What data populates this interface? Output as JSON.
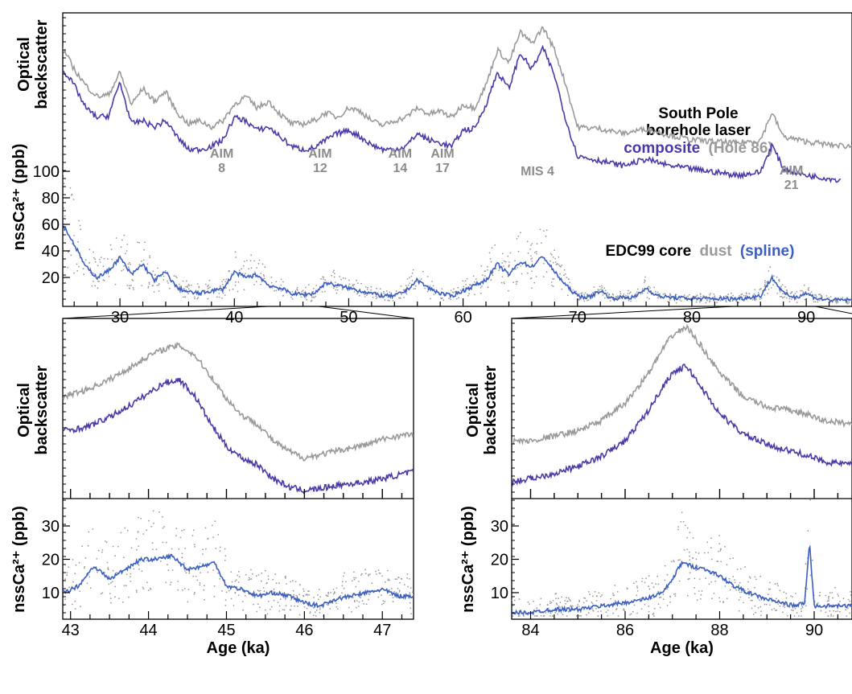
{
  "colors": {
    "laser_composite": "#4a3aa8",
    "laser_hole86": "#9a9a9a",
    "dust": "#9a9a9a",
    "spline": "#3b5fc0",
    "annotation": "#8c8c8c"
  },
  "legend": {
    "line1": "South Pole",
    "line2": "borehole laser",
    "composite": "composite",
    "hole": "(Hole 86)",
    "edc_core": "EDC99 core",
    "dust": "dust",
    "spline": "(spline)"
  },
  "annotations": [
    {
      "label": "AIM",
      "sub": "8",
      "age": 38.9
    },
    {
      "label": "AIM",
      "sub": "12",
      "age": 47.5
    },
    {
      "label": "AIM",
      "sub": "14",
      "age": 54.5
    },
    {
      "label": "AIM",
      "sub": "17",
      "age": 58.2
    },
    {
      "label": "MIS 4",
      "sub": "",
      "age": 66.5
    },
    {
      "label": "AIM",
      "sub": "21",
      "age": 88.7
    }
  ],
  "chart_data": [
    {
      "id": "top",
      "type": "line",
      "xlim": [
        25,
        94
      ],
      "x_ticks": [
        30,
        40,
        50,
        60,
        70,
        80,
        90
      ],
      "x_tick_labels": [
        "30",
        "40",
        "50",
        "60",
        "70",
        "80",
        "90"
      ],
      "ylabel_upper": "Optical backscatter",
      "ylabel_lower": "nssCa²⁺ (ppb)",
      "ylim_dust": [
        0,
        120
      ],
      "y_ticks_dust": [
        20,
        40,
        60,
        80,
        100
      ],
      "series": [
        {
          "key": "hole86",
          "x": [
            25,
            26,
            27,
            28,
            29,
            30,
            31,
            32,
            33,
            34,
            35,
            36,
            37,
            38,
            39,
            40,
            41,
            42,
            43,
            44,
            45,
            46,
            47,
            48,
            49,
            50,
            51,
            52,
            53,
            54,
            55,
            56,
            57,
            58,
            59,
            60,
            61,
            62,
            63,
            64,
            65,
            66,
            67,
            68,
            69,
            70,
            72,
            74,
            76,
            78,
            80,
            82,
            84,
            86,
            87,
            88,
            90,
            92,
            94
          ],
          "y": [
            0.85,
            0.72,
            0.62,
            0.55,
            0.56,
            0.7,
            0.5,
            0.6,
            0.52,
            0.58,
            0.45,
            0.38,
            0.4,
            0.36,
            0.4,
            0.5,
            0.55,
            0.48,
            0.52,
            0.44,
            0.38,
            0.38,
            0.4,
            0.45,
            0.42,
            0.48,
            0.46,
            0.4,
            0.37,
            0.4,
            0.42,
            0.48,
            0.44,
            0.46,
            0.42,
            0.5,
            0.48,
            0.62,
            0.84,
            0.76,
            0.95,
            0.88,
            0.98,
            0.84,
            0.62,
            0.36,
            0.35,
            0.32,
            0.35,
            0.31,
            0.28,
            0.27,
            0.26,
            0.28,
            0.45,
            0.3,
            0.27,
            0.25,
            0.24
          ]
        },
        {
          "key": "composite",
          "x": [
            25,
            26,
            27,
            28,
            29,
            30,
            31,
            32,
            33,
            34,
            35,
            36,
            37,
            38,
            39,
            40,
            41,
            42,
            43,
            44,
            45,
            46,
            47,
            48,
            49,
            50,
            51,
            52,
            53,
            54,
            55,
            56,
            57,
            58,
            59,
            60,
            61,
            62,
            63,
            64,
            65,
            66,
            67,
            68,
            69,
            70,
            72,
            74,
            76,
            78,
            80,
            82,
            84,
            86,
            87,
            88,
            90,
            92,
            93
          ],
          "y": [
            0.72,
            0.62,
            0.48,
            0.42,
            0.43,
            0.64,
            0.38,
            0.4,
            0.36,
            0.4,
            0.3,
            0.22,
            0.22,
            0.24,
            0.28,
            0.42,
            0.4,
            0.34,
            0.36,
            0.3,
            0.24,
            0.22,
            0.23,
            0.28,
            0.32,
            0.34,
            0.3,
            0.25,
            0.22,
            0.22,
            0.24,
            0.32,
            0.28,
            0.26,
            0.24,
            0.34,
            0.35,
            0.5,
            0.7,
            0.6,
            0.82,
            0.72,
            0.85,
            0.68,
            0.4,
            0.18,
            0.15,
            0.12,
            0.16,
            0.12,
            0.1,
            0.08,
            0.06,
            0.08,
            0.25,
            0.1,
            0.06,
            0.04,
            0.03
          ]
        },
        {
          "key": "spline",
          "x": [
            25,
            26,
            27,
            28,
            29,
            30,
            31,
            32,
            33,
            34,
            35,
            36,
            37,
            38,
            39,
            40,
            41,
            42,
            43,
            44,
            45,
            46,
            47,
            48,
            49,
            50,
            51,
            52,
            53,
            54,
            55,
            56,
            57,
            58,
            59,
            60,
            61,
            62,
            63,
            64,
            65,
            66,
            67,
            68,
            69,
            70,
            71,
            72,
            73,
            74,
            75,
            76,
            77,
            78,
            80,
            82,
            84,
            86,
            87,
            88,
            89,
            90,
            91,
            92,
            94
          ],
          "y": [
            60,
            45,
            28,
            20,
            25,
            35,
            22,
            30,
            18,
            24,
            12,
            9,
            8,
            10,
            11,
            24,
            20,
            22,
            14,
            12,
            8,
            7,
            8,
            16,
            14,
            12,
            10,
            8,
            6,
            6,
            10,
            18,
            12,
            8,
            6,
            10,
            14,
            18,
            30,
            22,
            32,
            28,
            36,
            24,
            14,
            6,
            5,
            10,
            4,
            5,
            5,
            12,
            6,
            5,
            4,
            4,
            4,
            6,
            20,
            8,
            5,
            8,
            4,
            3,
            3
          ]
        }
      ]
    },
    {
      "id": "zoom-left",
      "type": "line",
      "xlim": [
        42.9,
        47.4
      ],
      "x_ticks": [
        43,
        44,
        45,
        46,
        47
      ],
      "x_tick_labels": [
        "43",
        "44",
        "45",
        "46",
        "47"
      ],
      "xlabel": "Age (ka)",
      "ylabel_upper": "Optical backscatter",
      "ylabel_lower": "nssCa²⁺ (ppb)",
      "ylim_dust": [
        3,
        37
      ],
      "y_ticks_dust": [
        10,
        20,
        30
      ],
      "series": [
        {
          "key": "hole86",
          "x": [
            42.9,
            43.2,
            43.5,
            43.8,
            44.0,
            44.2,
            44.4,
            44.6,
            44.8,
            45.0,
            45.2,
            45.4,
            45.6,
            45.8,
            46.0,
            46.2,
            46.4,
            46.6,
            46.8,
            47.0,
            47.2,
            47.4
          ],
          "y": [
            0.56,
            0.6,
            0.66,
            0.74,
            0.8,
            0.84,
            0.86,
            0.8,
            0.68,
            0.55,
            0.45,
            0.4,
            0.3,
            0.24,
            0.2,
            0.22,
            0.24,
            0.26,
            0.28,
            0.31,
            0.33,
            0.34
          ]
        },
        {
          "key": "composite",
          "x": [
            42.9,
            43.2,
            43.5,
            43.8,
            44.0,
            44.2,
            44.4,
            44.6,
            44.8,
            45.0,
            45.2,
            45.4,
            45.6,
            45.8,
            46.0,
            46.2,
            46.4,
            46.6,
            46.8,
            47.0,
            47.2,
            47.4
          ],
          "y": [
            0.36,
            0.38,
            0.44,
            0.52,
            0.58,
            0.64,
            0.66,
            0.56,
            0.4,
            0.27,
            0.2,
            0.16,
            0.08,
            0.03,
            0.01,
            0.02,
            0.04,
            0.05,
            0.06,
            0.08,
            0.1,
            0.12
          ]
        },
        {
          "key": "spline",
          "x": [
            42.9,
            43.1,
            43.3,
            43.5,
            43.7,
            43.9,
            44.1,
            44.3,
            44.5,
            44.7,
            44.85,
            45.0,
            45.2,
            45.4,
            45.6,
            45.8,
            46.0,
            46.2,
            46.4,
            46.6,
            46.8,
            47.0,
            47.2,
            47.4
          ],
          "y": [
            10,
            12,
            18,
            14,
            17,
            20,
            20,
            21,
            17,
            18,
            19,
            12,
            11,
            9,
            10,
            9,
            7,
            6,
            8,
            9,
            10,
            11,
            9,
            9
          ]
        }
      ]
    },
    {
      "id": "zoom-right",
      "type": "line",
      "xlim": [
        83.6,
        90.8
      ],
      "x_ticks": [
        84,
        86,
        88,
        90
      ],
      "x_tick_labels": [
        "84",
        "86",
        "88",
        "90"
      ],
      "xlabel": "Age (ka)",
      "ylabel_upper": "Optical backscatter",
      "ylabel_lower": "nssCa²⁺ (ppb)",
      "ylim_dust": [
        3,
        37
      ],
      "y_ticks_dust": [
        10,
        20,
        30
      ],
      "series": [
        {
          "key": "hole86",
          "x": [
            83.6,
            84.0,
            84.5,
            85.0,
            85.5,
            86.0,
            86.5,
            86.8,
            87.0,
            87.3,
            87.6,
            88.0,
            88.5,
            89.0,
            89.5,
            89.8,
            90.2,
            90.8
          ],
          "y": [
            0.3,
            0.3,
            0.33,
            0.36,
            0.42,
            0.52,
            0.7,
            0.84,
            0.92,
            0.97,
            0.86,
            0.7,
            0.56,
            0.5,
            0.48,
            0.46,
            0.42,
            0.4
          ]
        },
        {
          "key": "composite",
          "x": [
            83.6,
            84.0,
            84.5,
            85.0,
            85.5,
            86.0,
            86.5,
            86.8,
            87.0,
            87.3,
            87.6,
            88.0,
            88.5,
            89.0,
            89.5,
            89.8,
            90.2,
            90.8
          ],
          "y": [
            0.06,
            0.08,
            0.11,
            0.15,
            0.21,
            0.3,
            0.48,
            0.62,
            0.7,
            0.74,
            0.62,
            0.46,
            0.34,
            0.28,
            0.24,
            0.22,
            0.18,
            0.16
          ]
        },
        {
          "key": "spline",
          "x": [
            83.6,
            84.0,
            84.5,
            85.0,
            85.5,
            86.0,
            86.4,
            86.8,
            87.0,
            87.2,
            87.4,
            87.7,
            88.0,
            88.3,
            88.6,
            89.0,
            89.3,
            89.6,
            89.8,
            89.9,
            90.0,
            90.3,
            90.8
          ],
          "y": [
            4,
            4,
            5,
            5,
            6,
            7,
            8,
            10,
            14,
            19,
            18,
            17,
            15,
            12,
            10,
            8,
            7,
            6,
            7,
            25,
            6,
            6,
            6
          ]
        }
      ]
    }
  ]
}
